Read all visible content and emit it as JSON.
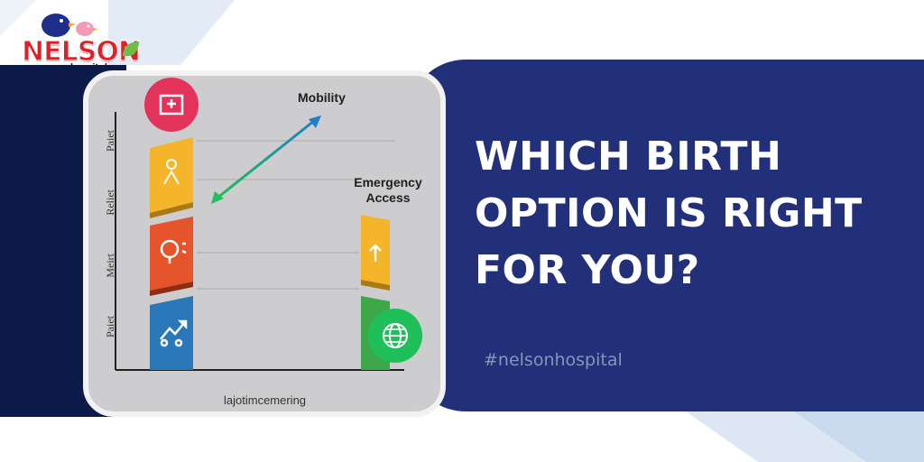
{
  "brand": {
    "name": "NELSON",
    "sub": "hospital",
    "primary_color": "#e41e26",
    "navy": "#22307a",
    "navy_dark": "#0c1a4a"
  },
  "headline": {
    "line1": "WHICH BIRTH",
    "line2": "OPTION IS RIGHT",
    "line3": "FOR YOU?"
  },
  "hashtag": "#nelsonhospital",
  "illustration": {
    "label_mobility": "Mobility",
    "label_emergency_1": "Emergency",
    "label_emergency_2": "Access",
    "x_axis_label": "lajotimcemering",
    "y_axis_labels": [
      "Paiet",
      "Reliet",
      "Meirt",
      "Paiet"
    ],
    "icons": [
      "hospital-icon",
      "person-icon",
      "lightbulb-icon",
      "growth-icon",
      "arrow-up-icon",
      "globe-icon"
    ],
    "bar_colors": [
      "#f4b52a",
      "#e5542b",
      "#2a78b8",
      "#f4b52a",
      "#3da84a"
    ],
    "badge_colors": [
      "#e4335a",
      "#1fbf5a"
    ]
  }
}
